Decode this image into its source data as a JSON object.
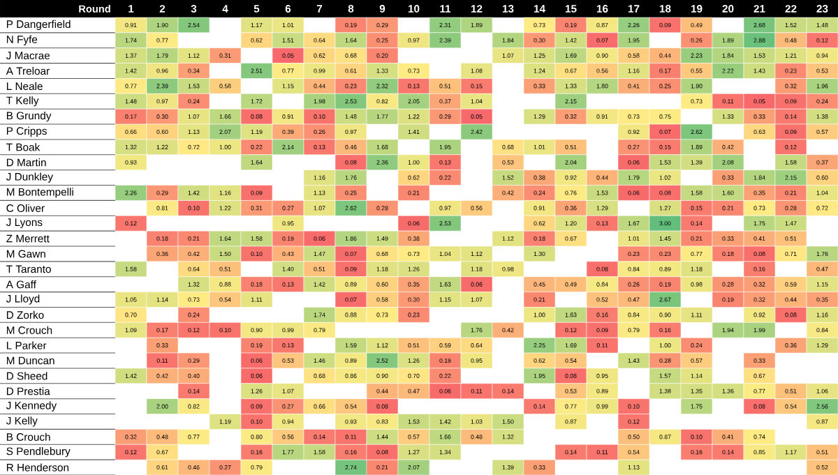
{
  "chart_data": {
    "type": "heatmap",
    "xlabel": "Round",
    "categories": [
      "1",
      "2",
      "3",
      "4",
      "5",
      "6",
      "7",
      "8",
      "9",
      "10",
      "11",
      "12",
      "13",
      "14",
      "15",
      "16",
      "17",
      "18",
      "19",
      "20",
      "21",
      "22",
      "23"
    ],
    "y_categories": [
      "P Dangerfield",
      "N Fyfe",
      "J Macrae",
      "A Treloar",
      "L Neale",
      "T Kelly",
      "B Grundy",
      "P Cripps",
      "T Boak",
      "D Martin",
      "J Dunkley",
      "M Bontempelli",
      "C Oliver",
      "J Lyons",
      "Z Merrett",
      "M Gawn",
      "T Taranto",
      "A Gaff",
      "J Lloyd",
      "D Zorko",
      "M Crouch",
      "L Parker",
      "M Duncan",
      "D Sheed",
      "D Prestia",
      "J Kennedy",
      "J Kelly",
      "B Crouch",
      "S Pendlebury",
      "R Henderson"
    ],
    "cells": [
      [
        0.91,
        1.9,
        2.54,
        null,
        1.17,
        1.01,
        null,
        0.19,
        0.29,
        null,
        2.31,
        1.89,
        null,
        0.73,
        0.19,
        0.87,
        2.26,
        0.09,
        0.49,
        null,
        2.68,
        1.52,
        1.48
      ],
      [
        1.74,
        0.77,
        null,
        null,
        0.62,
        1.51,
        0.64,
        1.64,
        0.25,
        0.97,
        2.39,
        null,
        1.84,
        0.3,
        1.42,
        0.07,
        1.95,
        null,
        0.26,
        1.89,
        2.88,
        0.48,
        0.12
      ],
      [
        1.37,
        1.79,
        1.12,
        0.31,
        null,
        0.05,
        0.62,
        0.68,
        0.2,
        null,
        null,
        null,
        1.07,
        1.25,
        1.69,
        0.9,
        0.58,
        0.44,
        2.23,
        1.84,
        1.53,
        1.21,
        0.94
      ],
      [
        1.42,
        0.96,
        0.34,
        null,
        2.51,
        0.77,
        0.99,
        0.61,
        1.33,
        0.73,
        null,
        1.08,
        null,
        1.24,
        0.67,
        0.56,
        1.16,
        0.17,
        0.55,
        2.22,
        1.43,
        0.23,
        0.53
      ],
      [
        0.77,
        2.39,
        1.53,
        0.58,
        null,
        1.15,
        0.44,
        0.23,
        2.32,
        0.13,
        0.51,
        0.15,
        null,
        0.33,
        1.33,
        1.8,
        0.41,
        0.25,
        1.9,
        null,
        null,
        0.32,
        1.96
      ],
      [
        1.48,
        0.97,
        0.24,
        null,
        1.72,
        null,
        1.98,
        2.53,
        0.82,
        2.05,
        0.37,
        1.04,
        null,
        null,
        2.15,
        null,
        null,
        null,
        0.73,
        0.11,
        0.05,
        0.09,
        0.24
      ],
      [
        0.17,
        0.3,
        1.07,
        1.66,
        0.08,
        0.91,
        0.1,
        1.48,
        1.77,
        1.22,
        0.29,
        0.05,
        null,
        1.29,
        0.32,
        0.91,
        0.73,
        0.75,
        null,
        1.33,
        0.33,
        0.14,
        1.38
      ],
      [
        0.66,
        0.6,
        1.13,
        2.07,
        1.19,
        0.39,
        0.26,
        0.97,
        null,
        1.41,
        null,
        2.42,
        null,
        null,
        null,
        null,
        0.92,
        0.07,
        2.62,
        null,
        0.63,
        0.09,
        0.57
      ],
      [
        1.32,
        1.22,
        0.72,
        1.0,
        0.22,
        2.14,
        0.13,
        0.46,
        1.68,
        null,
        1.95,
        null,
        0.68,
        1.01,
        0.51,
        null,
        0.27,
        0.15,
        1.89,
        0.42,
        null,
        0.12,
        null
      ],
      [
        0.93,
        null,
        null,
        null,
        1.64,
        null,
        null,
        0.08,
        2.36,
        1.0,
        0.13,
        null,
        0.53,
        null,
        2.04,
        null,
        0.06,
        1.53,
        1.39,
        2.08,
        null,
        1.58,
        0.37
      ],
      [
        null,
        null,
        null,
        null,
        null,
        null,
        1.16,
        1.76,
        null,
        0.62,
        0.22,
        null,
        1.52,
        0.38,
        0.92,
        0.44,
        1.79,
        1.02,
        null,
        0.33,
        1.84,
        2.15,
        0.6
      ],
      [
        2.26,
        0.29,
        1.42,
        1.16,
        0.09,
        null,
        1.13,
        0.25,
        null,
        0.21,
        null,
        null,
        0.42,
        0.24,
        0.76,
        1.53,
        0.06,
        0.08,
        1.58,
        1.6,
        0.35,
        0.21,
        1.04
      ],
      [
        null,
        0.81,
        0.1,
        1.22,
        0.31,
        0.27,
        1.07,
        2.62,
        0.28,
        null,
        0.97,
        0.56,
        null,
        0.91,
        0.36,
        1.29,
        null,
        1.27,
        0.15,
        0.21,
        0.73,
        0.28,
        0.72
      ],
      [
        0.12,
        null,
        null,
        null,
        null,
        0.95,
        null,
        null,
        null,
        0.06,
        2.53,
        null,
        null,
        0.62,
        1.2,
        0.13,
        1.67,
        3.0,
        0.14,
        null,
        1.75,
        1.47,
        null
      ],
      [
        null,
        0.18,
        0.21,
        1.64,
        1.58,
        0.19,
        0.06,
        1.86,
        1.49,
        0.38,
        null,
        null,
        1.12,
        0.18,
        0.67,
        null,
        1.01,
        1.45,
        0.21,
        0.33,
        0.41,
        0.51,
        null
      ],
      [
        null,
        0.36,
        0.42,
        1.5,
        0.1,
        0.43,
        1.47,
        0.07,
        0.68,
        0.73,
        1.04,
        1.12,
        null,
        1.3,
        null,
        null,
        0.23,
        0.23,
        0.77,
        0.18,
        0.08,
        0.71,
        1.76
      ],
      [
        1.58,
        null,
        0.64,
        0.51,
        null,
        1.4,
        0.51,
        0.09,
        1.18,
        1.26,
        null,
        1.18,
        0.98,
        null,
        null,
        0.08,
        0.84,
        0.89,
        1.18,
        null,
        0.16,
        null,
        0.47
      ],
      [
        null,
        null,
        1.32,
        0.88,
        0.18,
        0.13,
        1.42,
        0.89,
        0.6,
        0.35,
        1.63,
        0.06,
        null,
        0.45,
        0.49,
        0.84,
        0.26,
        0.19,
        0.98,
        0.28,
        0.32,
        0.59,
        1.15
      ],
      [
        1.05,
        1.14,
        0.73,
        0.54,
        1.11,
        null,
        null,
        0.07,
        0.58,
        0.3,
        1.15,
        1.07,
        null,
        0.21,
        null,
        0.52,
        0.47,
        2.67,
        null,
        0.19,
        0.32,
        0.44,
        0.35
      ],
      [
        0.7,
        null,
        0.24,
        null,
        null,
        null,
        1.74,
        0.88,
        0.73,
        0.23,
        null,
        null,
        null,
        1.0,
        1.63,
        0.16,
        0.84,
        0.9,
        1.11,
        null,
        0.92,
        0.08,
        1.16
      ],
      [
        1.09,
        0.17,
        0.12,
        0.1,
        0.9,
        0.99,
        0.79,
        null,
        null,
        null,
        null,
        1.76,
        0.42,
        null,
        0.12,
        0.09,
        0.79,
        0.16,
        null,
        1.94,
        1.99,
        null,
        0.84
      ],
      [
        null,
        0.33,
        null,
        null,
        0.19,
        0.13,
        null,
        1.59,
        1.12,
        0.51,
        0.59,
        0.64,
        null,
        2.25,
        1.69,
        0.11,
        null,
        1.0,
        0.24,
        null,
        null,
        0.36,
        1.29
      ],
      [
        null,
        0.11,
        0.29,
        null,
        0.06,
        0.53,
        1.46,
        0.89,
        2.52,
        1.26,
        0.19,
        0.95,
        null,
        0.62,
        0.54,
        null,
        1.43,
        0.28,
        0.57,
        null,
        0.33,
        null,
        null
      ],
      [
        1.42,
        0.42,
        0.4,
        null,
        0.06,
        null,
        0.68,
        0.86,
        0.9,
        0.7,
        0.22,
        null,
        null,
        1.95,
        0.08,
        0.95,
        null,
        1.57,
        1.14,
        null,
        0.67,
        null,
        null
      ],
      [
        null,
        null,
        0.14,
        null,
        1.26,
        1.07,
        null,
        null,
        0.44,
        0.47,
        0.06,
        0.11,
        0.14,
        null,
        0.53,
        0.89,
        null,
        1.38,
        1.35,
        1.36,
        0.77,
        0.51,
        1.06
      ],
      [
        null,
        2.0,
        0.82,
        null,
        0.09,
        0.27,
        0.66,
        0.54,
        0.08,
        null,
        null,
        null,
        null,
        0.14,
        0.77,
        0.99,
        0.1,
        null,
        1.75,
        null,
        0.08,
        0.54,
        2.56
      ],
      [
        null,
        null,
        null,
        1.19,
        0.1,
        0.94,
        null,
        0.93,
        0.83,
        1.53,
        1.42,
        1.03,
        1.5,
        null,
        0.87,
        null,
        0.12,
        null,
        null,
        null,
        null,
        null,
        0.87
      ],
      [
        0.32,
        0.48,
        0.77,
        null,
        0.8,
        0.56,
        0.14,
        0.11,
        1.44,
        0.57,
        1.66,
        0.48,
        1.32,
        null,
        null,
        null,
        0.5,
        0.87,
        0.1,
        0.41,
        0.74,
        null,
        null
      ],
      [
        0.12,
        0.67,
        null,
        null,
        0.16,
        1.77,
        1.58,
        0.16,
        0.08,
        1.27,
        1.34,
        null,
        null,
        null,
        0.14,
        0.11,
        0.54,
        null,
        0.16,
        0.14,
        0.85,
        1.17,
        0.51
      ],
      [
        null,
        0.61,
        0.46,
        0.27,
        0.79,
        null,
        null,
        2.74,
        0.21,
        2.07,
        null,
        null,
        1.39,
        0.33,
        null,
        null,
        1.13,
        null,
        null,
        null,
        null,
        null,
        0.52
      ]
    ],
    "cell_labels": [
      [
        "0.91",
        "1.90",
        "2.54",
        null,
        "1.17",
        "1.01",
        null,
        "0.19",
        "0.29",
        null,
        "2.31",
        "1.89",
        null,
        "0.73",
        "0.19",
        "0.87",
        "2.26",
        "0.09",
        "0.49",
        null,
        "2.68",
        "1.52",
        "1.48"
      ],
      [
        "1.74",
        "0.77",
        null,
        null,
        "0.62",
        "1.51",
        "0.64",
        "1.64",
        "0.25",
        "0.97",
        "2.39",
        null,
        "1.84",
        "0.30",
        "1.42",
        "0.07",
        "1.95",
        null,
        "0.26",
        "1.89",
        "2.88",
        "0.48",
        "0.12"
      ],
      [
        "1.37",
        "1.79",
        "1.12",
        "0.31",
        null,
        "0.05",
        "0.62",
        "0.68",
        "0.20",
        null,
        null,
        null,
        "1.07",
        "1.25",
        "1.69",
        "0.90",
        "0.58",
        "0.44",
        "2.23",
        "1.84",
        "1.53",
        "1.21",
        "0.94"
      ],
      [
        "1.42",
        "0.96",
        "0.34",
        null,
        "2.51",
        "0.77",
        "0.99",
        "0.61",
        "1.33",
        "0.73",
        null,
        "1.08",
        null,
        "1.24",
        "0.67",
        "0.56",
        "1.16",
        "0.17",
        "0.55",
        "2.22",
        "1.43",
        "0.23",
        "0.53"
      ],
      [
        "0.77",
        "2.39",
        "1.53",
        "0.58",
        null,
        "1.15",
        "0.44",
        "0.23",
        "2.32",
        "0.13",
        "0.51",
        "0.15",
        null,
        "0.33",
        "1.33",
        "1.80",
        "0.41",
        "0.25",
        "1.90",
        null,
        null,
        "0.32",
        "1.96"
      ],
      [
        "1.48",
        "0.97",
        "0.24",
        null,
        "1.72",
        null,
        "1.98",
        "2.53",
        "0.82",
        "2.05",
        "0.37",
        "1.04",
        null,
        null,
        "2.15",
        null,
        null,
        null,
        "0.73",
        "0.11",
        "0.05",
        "0.09",
        "0.24"
      ],
      [
        "0.17",
        "0.30",
        "1.07",
        "1.66",
        "0.08",
        "0.91",
        "0.10",
        "1.48",
        "1.77",
        "1.22",
        "0.29",
        "0.05",
        null,
        "1.29",
        "0.32",
        "0.91",
        "0.73",
        "0.75",
        null,
        "1.33",
        "0.33",
        "0.14",
        "1.38"
      ],
      [
        "0.66",
        "0.60",
        "1.13",
        "2.07",
        "1.19",
        "0.39",
        "0.26",
        "0.97",
        null,
        "1.41",
        null,
        "2.42",
        null,
        null,
        null,
        null,
        "0.92",
        "0.07",
        "2.62",
        null,
        "0.63",
        "0.09",
        "0.57"
      ],
      [
        "1.32",
        "1.22",
        "0.72",
        "1.00",
        "0.22",
        "2.14",
        "0.13",
        "0.46",
        "1.68",
        null,
        "1.95",
        null,
        "0.68",
        "1.01",
        "0.51",
        null,
        "0.27",
        "0.15",
        "1.89",
        "0.42",
        null,
        "0.12",
        null
      ],
      [
        "0.93",
        null,
        null,
        null,
        "1.64",
        null,
        null,
        "0.08",
        "2.36",
        "1.00",
        "0.13",
        null,
        "0.53",
        null,
        "2.04",
        null,
        "0.06",
        "1.53",
        "1.39",
        "2.08",
        null,
        "1.58",
        "0.37"
      ],
      [
        null,
        null,
        null,
        null,
        null,
        null,
        "1.16",
        "1.76",
        null,
        "0.62",
        "0.22",
        null,
        "1.52",
        "0.38",
        "0.92",
        "0.44",
        "1.79",
        "1.02",
        null,
        "0.33",
        "1.84",
        "2.15",
        "0.60"
      ],
      [
        "2.26",
        "0.29",
        "1.42",
        "1.16",
        "0.09",
        null,
        "1.13",
        "0.25",
        null,
        "0.21",
        null,
        null,
        "0.42",
        "0.24",
        "0.76",
        "1.53",
        "0.06",
        "0.08",
        "1.58",
        "1.60",
        "0.35",
        "0.21",
        "1.04"
      ],
      [
        null,
        "0.81",
        "0.10",
        "1.22",
        "0.31",
        "0.27",
        "1.07",
        "2.62",
        "0.28",
        null,
        "0.97",
        "0.56",
        null,
        "0.91",
        "0.36",
        "1.29",
        null,
        "1.27",
        "0.15",
        "0.21",
        "0.73",
        "0.28",
        "0.72"
      ],
      [
        "0.12",
        null,
        null,
        null,
        null,
        "0.95",
        null,
        null,
        null,
        "0.06",
        "2.53",
        null,
        null,
        "0.62",
        "1.20",
        "0.13",
        "1.67",
        "3.00",
        "0.14",
        null,
        "1.75",
        "1.47",
        null
      ],
      [
        null,
        "0.18",
        "0.21",
        "1.64",
        "1.58",
        "0.19",
        "0.06",
        "1.86",
        "1.49",
        "0.38",
        null,
        null,
        "1.12",
        "0.18",
        "0.67",
        null,
        "1.01",
        "1.45",
        "0.21",
        "0.33",
        "0.41",
        "0.51",
        null
      ],
      [
        null,
        "0.36",
        "0.42",
        "1.50",
        "0.10",
        "0.43",
        "1.47",
        "0.07",
        "0.68",
        "0.73",
        "1.04",
        "1.12",
        null,
        "1.30",
        null,
        null,
        "0.23",
        "0.23",
        "0.77",
        "0.18",
        "0.08",
        "0.71",
        "1.76"
      ],
      [
        "1.58",
        null,
        "0.64",
        "0.51",
        null,
        "1.40",
        "0.51",
        "0.09",
        "1.18",
        "1.26",
        null,
        "1.18",
        "0.98",
        null,
        null,
        "0.08",
        "0.84",
        "0.89",
        "1.18",
        null,
        "0.16",
        null,
        "0.47"
      ],
      [
        null,
        null,
        "1.32",
        "0.88",
        "0.18",
        "0.13",
        "1.42",
        "0.89",
        "0.60",
        "0.35",
        "1.63",
        "0.06",
        null,
        "0.45",
        "0.49",
        "0.84",
        "0.26",
        "0.19",
        "0.98",
        "0.28",
        "0.32",
        "0.59",
        "1.15"
      ],
      [
        "1.05",
        "1.14",
        "0.73",
        "0.54",
        "1.11",
        null,
        null,
        "0.07",
        "0.58",
        "0.30",
        "1.15",
        "1.07",
        null,
        "0.21",
        null,
        "0.52",
        "0.47",
        "2.67",
        null,
        "0.19",
        "0.32",
        "0.44",
        "0.35"
      ],
      [
        "0.70",
        null,
        "0.24",
        null,
        null,
        null,
        "1.74",
        "0.88",
        "0.73",
        "0.23",
        null,
        null,
        null,
        "1.00",
        "1.63",
        "0.16",
        "0.84",
        "0.90",
        "1.11",
        null,
        "0.92",
        "0.08",
        "1.16"
      ],
      [
        "1.09",
        "0.17",
        "0.12",
        "0.10",
        "0.90",
        "0.99",
        "0.79",
        null,
        null,
        null,
        null,
        "1.76",
        "0.42",
        null,
        "0.12",
        "0.09",
        "0.79",
        "0.16",
        null,
        "1.94",
        "1.99",
        null,
        "0.84"
      ],
      [
        null,
        "0.33",
        null,
        null,
        "0.19",
        "0.13",
        null,
        "1.59",
        "1.12",
        "0.51",
        "0.59",
        "0.64",
        null,
        "2.25",
        "1.69",
        "0.11",
        null,
        "1.00",
        "0.24",
        null,
        null,
        "0.36",
        "1.29"
      ],
      [
        null,
        "0.11",
        "0.29",
        null,
        "0.06",
        "0.53",
        "1.46",
        "0.89",
        "2.52",
        "1.26",
        "0.19",
        "0.95",
        null,
        "0.62",
        "0.54",
        null,
        "1.43",
        "0.28",
        "0.57",
        null,
        "0.33",
        null,
        null
      ],
      [
        "1.42",
        "0.42",
        "0.40",
        null,
        "0.06",
        null,
        "0.68",
        "0.86",
        "0.90",
        "0.70",
        "0.22",
        null,
        null,
        "1.95",
        "0.08",
        "0.95",
        null,
        "1.57",
        "1.14",
        null,
        "0.67",
        null,
        null
      ],
      [
        null,
        null,
        "0.14",
        null,
        "1.26",
        "1.07",
        null,
        null,
        "0.44",
        "0.47",
        "0.06",
        "0.11",
        "0.14",
        null,
        "0.53",
        "0.89",
        null,
        "1.38",
        "1.35",
        "1.36",
        "0.77",
        "0.51",
        "1.06"
      ],
      [
        null,
        "2.00",
        "0.82",
        null,
        "0.09",
        "0.27",
        "0.66",
        "0.54",
        "0.08",
        null,
        null,
        null,
        null,
        "0.14",
        "0.77",
        "0.99",
        "0.10",
        null,
        "1.75",
        null,
        "0.08",
        "0.54",
        "2.56"
      ],
      [
        null,
        null,
        null,
        "1.19",
        "0.10",
        "0.94",
        null,
        "0.93",
        "0.83",
        "1.53",
        "1.42",
        "1.03",
        "1.50",
        null,
        "0.87",
        null,
        "0.12",
        null,
        null,
        null,
        null,
        null,
        "0.87"
      ],
      [
        "0.32",
        "0.48",
        "0.77",
        null,
        "0.80",
        "0.56",
        "0.14",
        "0.11",
        "1.44",
        "0.57",
        "1.66",
        "0.48",
        "1.32",
        null,
        null,
        null,
        "0.50",
        "0.87",
        "0.10",
        "0.41",
        "0.74",
        null,
        null
      ],
      [
        "0.12",
        "0.67",
        null,
        null,
        "0.16",
        "1.77",
        "1.58",
        "0.16",
        "0.08",
        "1.27",
        "1.34",
        null,
        null,
        null,
        "0.14",
        "0.11",
        "0.54",
        null,
        "0.16",
        "0.14",
        "0.85",
        "1.17",
        "0.51"
      ],
      [
        null,
        "0.61",
        "0.46",
        "0.27",
        "0.79",
        null,
        null,
        "2.74",
        "0.21",
        "2.07",
        null,
        null,
        "1.39",
        "0.33",
        null,
        null,
        "1.13",
        null,
        null,
        null,
        null,
        null,
        "0.52"
      ]
    ]
  }
}
